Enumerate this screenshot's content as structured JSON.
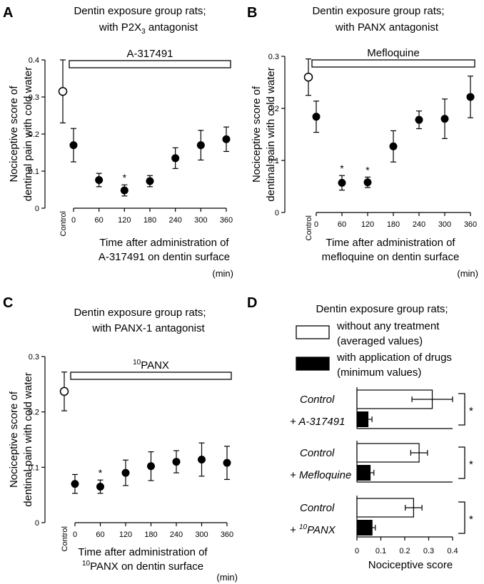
{
  "chart_data": [
    {
      "type": "scatter",
      "panel_label": "A",
      "title_line1": "Dentin exposure group rats;",
      "title_line2_prefix": "with P2X",
      "title_line2_sub": "3",
      "title_line2_suffix": " antagonist",
      "drug_bar_label": "A-317491",
      "ylabel_line1": "Nociceptive score of",
      "ylabel_line2": "dentinal pain with cold water",
      "xlabel_line1": "Time after administration of",
      "xlabel_line2": "A-317491 on dentin surface",
      "xlabel_unit": "(min)",
      "ylim": [
        0,
        0.4
      ],
      "yticks": [
        0,
        0.1,
        0.2,
        0.3,
        0.4
      ],
      "ytick_labels": [
        "0",
        "0.1",
        "0.2",
        "0.3",
        "0.4"
      ],
      "control_label": "Control",
      "control": {
        "value": 0.315,
        "err_low": 0.085,
        "err_high": 0.085
      },
      "x": [
        0,
        60,
        120,
        180,
        240,
        300,
        360
      ],
      "xtick_labels": [
        "0",
        "60",
        "120",
        "180",
        "240",
        "300",
        "360"
      ],
      "values": [
        0.17,
        0.076,
        0.048,
        0.073,
        0.135,
        0.17,
        0.186
      ],
      "err_low": [
        0.045,
        0.018,
        0.015,
        0.015,
        0.028,
        0.04,
        0.033
      ],
      "err_high": [
        0.045,
        0.018,
        0.015,
        0.015,
        0.028,
        0.04,
        0.033
      ],
      "significant": [
        false,
        false,
        true,
        false,
        false,
        false,
        false
      ],
      "sig_marker": "*"
    },
    {
      "type": "scatter",
      "panel_label": "B",
      "title_line1": "Dentin exposure group rats;",
      "title_line2_prefix": "with PANX antagonist",
      "title_line2_sub": "",
      "title_line2_suffix": "",
      "drug_bar_label": "Mefloquine",
      "ylabel_line1": "Nociceptive score of",
      "ylabel_line2": "dentinal pain with cold water",
      "xlabel_line1": "Time after administration of",
      "xlabel_line2": "mefloquine on dentin surface",
      "xlabel_unit": "(min)",
      "ylim": [
        0,
        0.3
      ],
      "yticks": [
        0,
        0.1,
        0.2,
        0.3
      ],
      "ytick_labels": [
        "0",
        "0.1",
        "0.2",
        "0.3"
      ],
      "control_label": "Control",
      "control": {
        "value": 0.26,
        "err_low": 0.035,
        "err_high": 0.035
      },
      "x": [
        0,
        60,
        120,
        180,
        240,
        300,
        360
      ],
      "xtick_labels": [
        "0",
        "60",
        "120",
        "180",
        "240",
        "300",
        "360"
      ],
      "values": [
        0.184,
        0.057,
        0.058,
        0.127,
        0.178,
        0.18,
        0.222
      ],
      "err_low": [
        0.03,
        0.014,
        0.01,
        0.03,
        0.017,
        0.038,
        0.04
      ],
      "err_high": [
        0.03,
        0.014,
        0.01,
        0.03,
        0.017,
        0.038,
        0.04
      ],
      "significant": [
        false,
        true,
        true,
        false,
        false,
        false,
        false
      ],
      "sig_marker": "*"
    },
    {
      "type": "scatter",
      "panel_label": "C",
      "title_line1": "Dentin exposure group rats;",
      "title_line2_prefix": "with PANX-1 antagonist",
      "title_line2_sub": "",
      "title_line2_suffix": "",
      "drug_bar_sup": "10",
      "drug_bar_label": "PANX",
      "ylabel_line1": "Nociceptive score of",
      "ylabel_line2": "dentinal pain with cold water",
      "xlabel_line1": "Time after administration of",
      "xlabel_line2_sup": "10",
      "xlabel_line2": "PANX on dentin surface",
      "xlabel_unit": "(min)",
      "ylim": [
        0,
        0.3
      ],
      "yticks": [
        0,
        0.1,
        0.2,
        0.3
      ],
      "ytick_labels": [
        "0",
        "0.1",
        "0.2",
        "0.3"
      ],
      "control_label": "Control",
      "control": {
        "value": 0.237,
        "err_low": 0.035,
        "err_high": 0.035
      },
      "x": [
        0,
        60,
        120,
        180,
        240,
        300,
        360
      ],
      "xtick_labels": [
        "0",
        "60",
        "120",
        "180",
        "240",
        "300",
        "360"
      ],
      "values": [
        0.07,
        0.065,
        0.09,
        0.102,
        0.11,
        0.114,
        0.108
      ],
      "err_low": [
        0.017,
        0.012,
        0.023,
        0.026,
        0.02,
        0.03,
        0.03
      ],
      "err_high": [
        0.017,
        0.012,
        0.023,
        0.026,
        0.02,
        0.03,
        0.03
      ],
      "significant": [
        false,
        true,
        false,
        false,
        false,
        false,
        false
      ],
      "sig_marker": "*"
    },
    {
      "type": "bar",
      "panel_label": "D",
      "title": "Dentin exposure group rats;",
      "legend": [
        {
          "fill": "#ffffff",
          "line1": "without any treatment",
          "line2": "(averaged values)"
        },
        {
          "fill": "#000000",
          "line1": "with application of drugs",
          "line2": "(minimum values)"
        }
      ],
      "groups": [
        {
          "name_line1": "Control",
          "name_line2_prefix": "+ ",
          "name_line2_sup": "",
          "name_line2": "A-317491",
          "without": 0.315,
          "without_err": 0.085,
          "with": 0.048,
          "with_err": 0.015,
          "sig": "*"
        },
        {
          "name_line1": "Control",
          "name_line2_prefix": "+ ",
          "name_line2_sup": "",
          "name_line2": "Mefloquine",
          "without": 0.26,
          "without_err": 0.035,
          "with": 0.057,
          "with_err": 0.014,
          "sig": "*"
        },
        {
          "name_line1": "Control",
          "name_line2_prefix": "+ ",
          "name_line2_sup": "10",
          "name_line2": "PANX",
          "without": 0.237,
          "without_err": 0.035,
          "with": 0.065,
          "with_err": 0.012,
          "sig": "*"
        }
      ],
      "xlim": [
        0,
        0.4
      ],
      "xticks": [
        0,
        0.1,
        0.2,
        0.3,
        0.4
      ],
      "xtick_labels": [
        "0",
        "0.1",
        "0.2",
        "0.3",
        "0.4"
      ],
      "xlabel": "Nociceptive score"
    }
  ]
}
